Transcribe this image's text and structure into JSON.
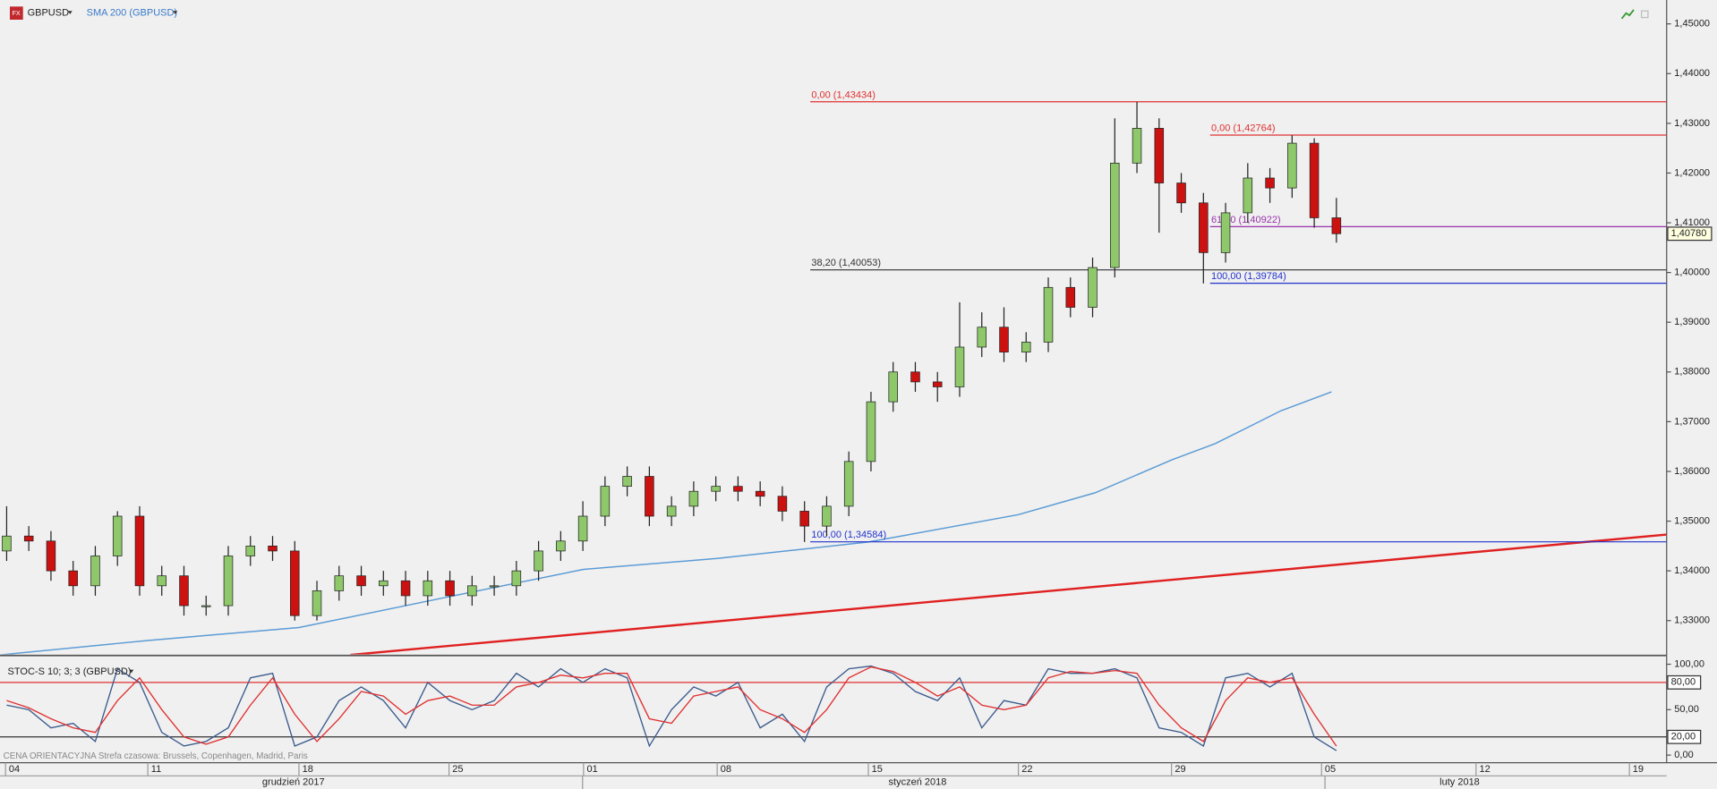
{
  "header": {
    "symbol": "GBPUSD",
    "indicator": "SMA 200 (GBPUSD)",
    "footer": "CENA ORIENTACYJNA   Strefa czasowa: Brussels, Copenhagen, Madrid, Paris"
  },
  "chart_data": [
    {
      "type": "candlestick",
      "x": [
        0,
        1,
        2,
        3,
        4,
        5,
        6,
        7,
        8,
        9,
        10,
        11,
        12,
        13,
        14,
        15,
        16,
        17,
        18,
        19,
        20,
        21,
        22,
        23,
        24,
        25,
        26,
        27,
        28,
        29,
        30,
        31,
        32,
        33,
        34,
        35,
        36,
        37,
        38,
        39,
        40,
        41,
        42,
        43,
        44,
        45,
        46,
        47,
        48,
        49,
        50,
        51,
        52,
        53,
        54,
        55,
        56,
        57,
        58,
        59,
        60
      ],
      "open": [
        1.344,
        1.347,
        1.346,
        1.34,
        1.337,
        1.343,
        1.351,
        1.337,
        1.339,
        1.333,
        1.333,
        1.343,
        1.345,
        1.344,
        1.331,
        1.336,
        1.339,
        1.337,
        1.338,
        1.335,
        1.338,
        1.335,
        1.337,
        1.337,
        1.34,
        1.344,
        1.346,
        1.351,
        1.357,
        1.359,
        1.351,
        1.353,
        1.356,
        1.357,
        1.356,
        1.355,
        1.352,
        1.349,
        1.353,
        1.362,
        1.374,
        1.38,
        1.378,
        1.377,
        1.385,
        1.389,
        1.384,
        1.386,
        1.397,
        1.393,
        1.401,
        1.422,
        1.429,
        1.418,
        1.414,
        1.404,
        1.412,
        1.419,
        1.417,
        1.426,
        1.411
      ],
      "high": [
        1.353,
        1.349,
        1.348,
        1.342,
        1.345,
        1.352,
        1.353,
        1.341,
        1.341,
        1.335,
        1.345,
        1.347,
        1.347,
        1.346,
        1.338,
        1.341,
        1.341,
        1.34,
        1.34,
        1.34,
        1.34,
        1.339,
        1.339,
        1.342,
        1.346,
        1.348,
        1.354,
        1.359,
        1.361,
        1.361,
        1.355,
        1.358,
        1.359,
        1.359,
        1.358,
        1.357,
        1.354,
        1.355,
        1.364,
        1.376,
        1.382,
        1.382,
        1.38,
        1.394,
        1.392,
        1.393,
        1.388,
        1.399,
        1.399,
        1.403,
        1.431,
        1.4343,
        1.431,
        1.42,
        1.416,
        1.414,
        1.422,
        1.421,
        1.4276,
        1.427,
        1.415
      ],
      "low": [
        1.342,
        1.344,
        1.338,
        1.335,
        1.335,
        1.341,
        1.335,
        1.335,
        1.331,
        1.331,
        1.331,
        1.341,
        1.342,
        1.33,
        1.33,
        1.334,
        1.335,
        1.335,
        1.333,
        1.333,
        1.333,
        1.333,
        1.335,
        1.335,
        1.338,
        1.342,
        1.344,
        1.349,
        1.355,
        1.349,
        1.349,
        1.351,
        1.354,
        1.354,
        1.353,
        1.35,
        1.3458,
        1.347,
        1.351,
        1.36,
        1.372,
        1.376,
        1.374,
        1.375,
        1.383,
        1.382,
        1.382,
        1.384,
        1.391,
        1.391,
        1.399,
        1.42,
        1.408,
        1.412,
        1.3978,
        1.402,
        1.41,
        1.414,
        1.415,
        1.409,
        1.406
      ],
      "close": [
        1.347,
        1.346,
        1.34,
        1.337,
        1.343,
        1.351,
        1.337,
        1.339,
        1.333,
        1.333,
        1.343,
        1.345,
        1.344,
        1.331,
        1.336,
        1.339,
        1.337,
        1.338,
        1.335,
        1.338,
        1.335,
        1.337,
        1.337,
        1.34,
        1.344,
        1.346,
        1.351,
        1.357,
        1.359,
        1.351,
        1.353,
        1.356,
        1.357,
        1.356,
        1.355,
        1.352,
        1.349,
        1.353,
        1.362,
        1.374,
        1.38,
        1.378,
        1.377,
        1.385,
        1.389,
        1.384,
        1.386,
        1.397,
        1.393,
        1.401,
        1.422,
        1.429,
        1.418,
        1.414,
        1.404,
        1.412,
        1.419,
        1.417,
        1.426,
        1.411,
        1.4078
      ],
      "up_color": "#8ec86a",
      "down_color": "#cc1111",
      "sma": {
        "color": "#5b9bd5",
        "x": [
          -0.3,
          6.37,
          13.19,
          19.96,
          26.03,
          32.06,
          38.88,
          45.65,
          49.11,
          52.56,
          54.54,
          57.5,
          59.78
        ],
        "values": [
          1.3231,
          1.326,
          1.3286,
          1.3348,
          1.3403,
          1.3425,
          1.3458,
          1.3513,
          1.3557,
          1.3623,
          1.3656,
          1.3722,
          1.376
        ]
      },
      "trendline": {
        "color": "#e02020",
        "x": [
          15.51,
          74.9
        ],
        "values": [
          1.3231,
          1.3473
        ]
      },
      "levels": [
        {
          "label": "0,00 (1,43434)",
          "value": 1.43434,
          "start": 36.26,
          "color": "#e03030"
        },
        {
          "label": "38,20 (1,40053)",
          "value": 1.40053,
          "start": 36.26,
          "color": "#333333"
        },
        {
          "label": "100,00 (1,34584)",
          "value": 1.34584,
          "start": 36.26,
          "color": "#2233cc"
        },
        {
          "label": "0,00 (1,42764)",
          "value": 1.42764,
          "start": 54.3,
          "color": "#e03030"
        },
        {
          "label": "61,80 (1,40922)",
          "value": 1.40922,
          "start": 54.3,
          "color": "#9933aa"
        },
        {
          "label": "100,00 (1,39784)",
          "value": 1.39784,
          "start": 54.3,
          "color": "#2233cc"
        }
      ],
      "last_price": {
        "value": 1.4078,
        "label": "1,40780"
      },
      "xlim": [
        -0.3,
        74.9
      ],
      "ylim": [
        1.3232,
        1.4548
      ],
      "yticks": [
        {
          "value": 1.33,
          "label": "1,33000"
        },
        {
          "value": 1.34,
          "label": "1,34000"
        },
        {
          "value": 1.35,
          "label": "1,35000"
        },
        {
          "value": 1.36,
          "label": "1,36000"
        },
        {
          "value": 1.37,
          "label": "1,37000"
        },
        {
          "value": 1.38,
          "label": "1,38000"
        },
        {
          "value": 1.39,
          "label": "1,39000"
        },
        {
          "value": 1.4,
          "label": "1,40000"
        },
        {
          "value": 1.41,
          "label": "1,41000"
        },
        {
          "value": 1.42,
          "label": "1,42000"
        },
        {
          "value": 1.43,
          "label": "1,43000"
        },
        {
          "value": 1.44,
          "label": "1,44000"
        },
        {
          "value": 1.45,
          "label": "1,45000"
        }
      ],
      "xticks": [
        {
          "value": -0.05,
          "label": "04"
        },
        {
          "value": 6.37,
          "label": "11"
        },
        {
          "value": 13.19,
          "label": "18"
        },
        {
          "value": 19.96,
          "label": "25"
        },
        {
          "value": 26.03,
          "label": "01"
        },
        {
          "value": 32.06,
          "label": "08"
        },
        {
          "value": 38.88,
          "label": "15"
        },
        {
          "value": 45.65,
          "label": "22"
        },
        {
          "value": 52.56,
          "label": "29"
        },
        {
          "value": 59.33,
          "label": "05"
        },
        {
          "value": 66.3,
          "label": "12"
        },
        {
          "value": 73.22,
          "label": "19"
        }
      ],
      "months": [
        {
          "value": 12.94,
          "label": "grudzień 2017"
        },
        {
          "value": 41.1,
          "label": "styczeń 2018"
        },
        {
          "value": 65.56,
          "label": "luty 2018"
        }
      ]
    },
    {
      "type": "line",
      "title": "STOC-S 10; 3; 3 (GBPUSD)",
      "series": [
        {
          "color": "#3a5a8c",
          "values": [
            55,
            50,
            30,
            35,
            15,
            95,
            80,
            25,
            10,
            15,
            30,
            85,
            90,
            10,
            20,
            60,
            75,
            60,
            30,
            80,
            60,
            50,
            60,
            90,
            75,
            95,
            80,
            95,
            85,
            10,
            50,
            75,
            65,
            80,
            30,
            45,
            15,
            75,
            95,
            98,
            90,
            70,
            60,
            85,
            30,
            60,
            55,
            95,
            90,
            90,
            95,
            85,
            30,
            25,
            10,
            85,
            90,
            75,
            90,
            20,
            5
          ]
        },
        {
          "color": "#e03030",
          "values": [
            60,
            52,
            40,
            30,
            25,
            60,
            85,
            50,
            20,
            12,
            20,
            55,
            85,
            45,
            15,
            40,
            70,
            65,
            45,
            60,
            65,
            55,
            55,
            75,
            80,
            88,
            85,
            90,
            90,
            40,
            35,
            65,
            70,
            75,
            50,
            40,
            25,
            50,
            85,
            97,
            92,
            80,
            65,
            75,
            55,
            50,
            55,
            85,
            92,
            90,
            93,
            90,
            55,
            30,
            15,
            60,
            85,
            80,
            85,
            45,
            10
          ]
        }
      ],
      "levels": [
        {
          "value": 80,
          "label": "80,00",
          "color": "#e03030"
        },
        {
          "value": 20,
          "label": "20,00",
          "color": "#333333"
        }
      ],
      "ylim": [
        -8.4,
        106
      ],
      "yticks": [
        {
          "value": 100,
          "label": "100,00"
        },
        {
          "value": 50,
          "label": "50,00"
        },
        {
          "value": 0,
          "label": "0,00"
        }
      ]
    }
  ]
}
